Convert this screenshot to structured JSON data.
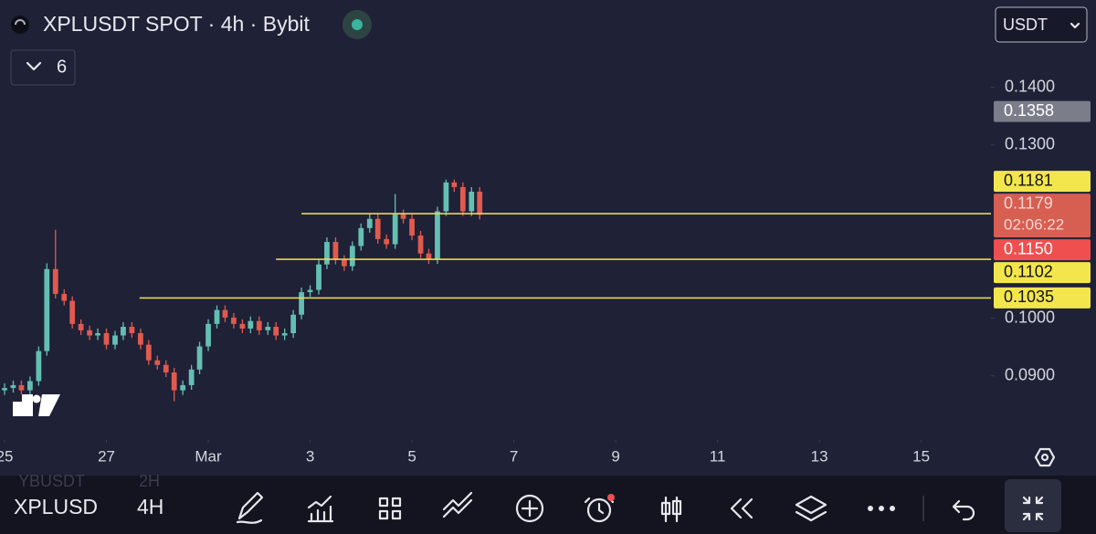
{
  "header": {
    "symbol": "XPLUSDT SPOT · 4h · Bybit",
    "indicators_count": "6",
    "currency": "USDT"
  },
  "chart_data": {
    "type": "candlestick",
    "up_color": "#64bfb3",
    "down_color": "#e05a4e",
    "line_color": "#e8d94a",
    "x": [
      0,
      0.17,
      0.33,
      0.5,
      0.67,
      0.83,
      1,
      1.17,
      1.33,
      1.5,
      1.67,
      1.83,
      2,
      2.17,
      2.33,
      2.5,
      2.67,
      2.83,
      3,
      3.17,
      3.33,
      3.5,
      3.67,
      3.83,
      4,
      4.17,
      4.33,
      4.5,
      4.67,
      4.83,
      5,
      5.17,
      5.33,
      5.5,
      5.67,
      5.83,
      6,
      6.17,
      6.33,
      6.5,
      6.67,
      6.83,
      7,
      7.17,
      7.33,
      7.5,
      7.67,
      7.83,
      8,
      8.17,
      8.33,
      8.5,
      8.67,
      8.83,
      9,
      9.17,
      9.33
    ],
    "open": [
      0.0875,
      0.0879,
      0.0884,
      0.0875,
      0.0891,
      0.0943,
      0.1085,
      0.1042,
      0.103,
      0.099,
      0.0979,
      0.097,
      0.0974,
      0.0954,
      0.097,
      0.0985,
      0.0974,
      0.0954,
      0.0927,
      0.0919,
      0.0906,
      0.0875,
      0.0884,
      0.0911,
      0.0951,
      0.099,
      0.1014,
      0.1001,
      0.099,
      0.0982,
      0.0995,
      0.0979,
      0.0985,
      0.097,
      0.0974,
      0.1006,
      0.1045,
      0.1049,
      0.1093,
      0.1132,
      0.1101,
      0.109,
      0.1125,
      0.1156,
      0.1172,
      0.1137,
      0.1128,
      0.118,
      0.1172,
      0.1143,
      0.1112,
      0.1102,
      0.1185,
      0.1235,
      0.1227,
      0.1185,
      0.1219
    ],
    "high": [
      0.0887,
      0.0892,
      0.0892,
      0.0899,
      0.0951,
      0.1095,
      0.1153,
      0.105,
      0.1038,
      0.0998,
      0.0987,
      0.0982,
      0.0982,
      0.0978,
      0.0993,
      0.0993,
      0.0982,
      0.0962,
      0.0935,
      0.0927,
      0.0914,
      0.0892,
      0.0919,
      0.0959,
      0.0998,
      0.1022,
      0.1022,
      0.1009,
      0.0998,
      0.1003,
      0.1003,
      0.0993,
      0.0993,
      0.0982,
      0.1014,
      0.1053,
      0.1057,
      0.1101,
      0.114,
      0.114,
      0.1109,
      0.1133,
      0.1164,
      0.118,
      0.118,
      0.1145,
      0.1215,
      0.1188,
      0.118,
      0.1151,
      0.112,
      0.1193,
      0.124,
      0.124,
      0.1235,
      0.1227,
      0.1227
    ],
    "low": [
      0.0867,
      0.0871,
      0.0867,
      0.0867,
      0.0883,
      0.0935,
      0.1034,
      0.1022,
      0.0982,
      0.0971,
      0.0962,
      0.0962,
      0.0946,
      0.0946,
      0.0962,
      0.0966,
      0.0946,
      0.0919,
      0.0911,
      0.0898,
      0.0856,
      0.0867,
      0.0876,
      0.0903,
      0.0943,
      0.0982,
      0.0993,
      0.0982,
      0.0974,
      0.0974,
      0.0971,
      0.0971,
      0.0962,
      0.0962,
      0.0966,
      0.0998,
      0.1037,
      0.1041,
      0.1085,
      0.1093,
      0.1082,
      0.1082,
      0.1117,
      0.1148,
      0.1129,
      0.112,
      0.112,
      0.1164,
      0.1135,
      0.1104,
      0.1094,
      0.1094,
      0.1177,
      0.1219,
      0.1177,
      0.1177,
      0.1171
    ],
    "close": [
      0.0879,
      0.0884,
      0.0875,
      0.0891,
      0.0943,
      0.1085,
      0.1042,
      0.103,
      0.099,
      0.0979,
      0.097,
      0.0974,
      0.0954,
      0.097,
      0.0985,
      0.0974,
      0.0954,
      0.0927,
      0.0919,
      0.0906,
      0.0875,
      0.0884,
      0.0911,
      0.0951,
      0.099,
      0.1014,
      0.1001,
      0.099,
      0.0982,
      0.0995,
      0.0979,
      0.0985,
      0.097,
      0.0974,
      0.1006,
      0.1045,
      0.1049,
      0.1093,
      0.1132,
      0.1101,
      0.109,
      0.1125,
      0.1156,
      0.1172,
      0.1137,
      0.1128,
      0.118,
      0.1172,
      0.1143,
      0.1112,
      0.1102,
      0.1185,
      0.1235,
      0.1227,
      0.1185,
      0.1219,
      0.1179
    ],
    "xlim": [
      -0.09,
      19.37
    ],
    "xticks": [
      {
        "value": 0,
        "label": "25"
      },
      {
        "value": 2,
        "label": "27"
      },
      {
        "value": 4,
        "label": "Mar"
      },
      {
        "value": 6,
        "label": "3"
      },
      {
        "value": 8,
        "label": "5"
      },
      {
        "value": 10,
        "label": "7"
      },
      {
        "value": 12,
        "label": "9"
      },
      {
        "value": 14,
        "label": "11"
      },
      {
        "value": 16,
        "label": "13"
      },
      {
        "value": 18,
        "label": "15"
      }
    ],
    "ylim": [
      0.0789,
      0.1551
    ],
    "yticks": [
      {
        "value": 0.14,
        "label": "0.1400"
      },
      {
        "value": 0.13,
        "label": "0.1300"
      },
      {
        "value": 0.1,
        "label": "0.1000"
      },
      {
        "value": 0.09,
        "label": "0.0900"
      }
    ],
    "hlines": [
      {
        "value": 0.1181,
        "start": 5.83
      },
      {
        "value": 0.1102,
        "start": 5.33
      },
      {
        "value": 0.1035,
        "start": 2.65
      }
    ],
    "price_labels": [
      {
        "value": 0.1358,
        "label": "0.1358",
        "color": "#7b7e8a",
        "text_color": "#ffffff"
      },
      {
        "value": 0.1181,
        "label": "0.1181",
        "color": "#f3e64c",
        "text_color": "#131313"
      },
      {
        "value": 0.1179,
        "label": "0.1179",
        "countdown": "02:06:22",
        "color": "#d65f52",
        "text_color": "#f4d6d2"
      },
      {
        "value": 0.115,
        "label": "0.1150",
        "color": "#f04f4f",
        "text_color": "#ffffff"
      },
      {
        "value": 0.1102,
        "label": "0.1102",
        "color": "#f3e64c",
        "text_color": "#131313"
      },
      {
        "value": 0.1035,
        "label": "0.1035",
        "color": "#f3e64c",
        "text_color": "#131313"
      }
    ]
  },
  "toolbar": {
    "symbol": "XPLUSD",
    "interval": "4H",
    "ghost_symbol": "YBUSDT",
    "ghost_interval": "2H"
  }
}
